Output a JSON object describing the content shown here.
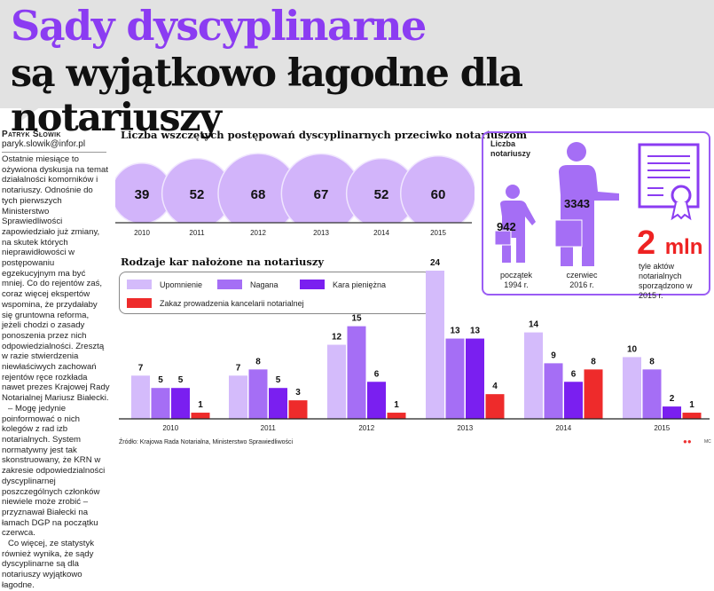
{
  "header": {
    "title_line1": "Sądy dyscyplinarne",
    "title_line2": "są wyjątkowo łagodne dla notariuszy"
  },
  "article": {
    "author": "Patryk Słowik",
    "email": "paryk.slowik@infor.pl",
    "paragraphs": [
      "Ostatnie miesiące to ożywiona dyskusja na temat działalności komorników i notariuszy. Odnośnie do tych pierwszych Ministerstwo Sprawiedliwości zapowiedziało już zmiany, na skutek których nieprawidłowości w postępowaniu egzekucyjnym ma być mniej. Co do rejentów zaś, coraz więcej ekspertów wspomina, że przydałaby się gruntowna reforma, jeżeli chodzi o zasady ponoszenia przez nich odpowiedzialności. Zresztą w razie stwierdzenia niewłaściwych zachowań rejentów ręce rozkłada nawet prezes Krajowej Rady Notarialnej Mariusz Białecki.",
      "– Mogę jedynie poinformować o nich kolegów z rad izb notarialnych. System normatywny jest tak skonstruowany, że KRN w zakresie odpowiedzialności dyscyplinarnej poszczególnych członków niewiele może zrobić – przyznawał Białecki na łamach DGP na początku czerwca.",
      "Co więcej, ze statystyk również wynika, że sądy dyscyplinarne są dla notariuszy wyjątkowo łagodne."
    ]
  },
  "notaries": {
    "title": "Liczba notariuszy",
    "items": [
      {
        "value": "942",
        "label": "początek 1994 r."
      },
      {
        "value": "3343",
        "label": "czerwiec 2016 r."
      }
    ],
    "acts_value": "2",
    "acts_unit": "mln",
    "acts_label": "tyle aktów notarialnych sporządzono w 2015 r."
  },
  "source": "Źródło: Krajowa Rada Notarialna, Ministerstwo Sprawiedliwości",
  "credit": "MC",
  "colors": {
    "purple_title": "#8b3cf2",
    "bubble": "#d2b4fa",
    "upomnienie": "#d4bbfb",
    "nagana": "#a56ef5",
    "kara": "#7a1ff0",
    "zakaz": "#ee2b2b",
    "red_big": "#ee2222"
  },
  "chart_data": [
    {
      "type": "bubble",
      "title": "Liczba wszczętych postępowań dyscyplinarnych przeciwko notariuszom",
      "categories": [
        "2010",
        "2011",
        "2012",
        "2013",
        "2014",
        "2015"
      ],
      "values": [
        39,
        52,
        68,
        67,
        52,
        60
      ]
    },
    {
      "type": "bar",
      "title": "Rodzaje kar nałożone na notariuszy",
      "categories": [
        "2010",
        "2011",
        "2012",
        "2013",
        "2014",
        "2015"
      ],
      "legend": "top-left",
      "grid": false,
      "series": [
        {
          "name": "Upomnienie",
          "values": [
            7,
            7,
            12,
            24,
            14,
            10
          ]
        },
        {
          "name": "Nagana",
          "values": [
            5,
            8,
            15,
            13,
            9,
            8
          ]
        },
        {
          "name": "Kara pieniężna",
          "values": [
            5,
            5,
            6,
            13,
            6,
            2
          ]
        },
        {
          "name": "Zakaz prowadzenia kancelarii notarialnej",
          "values": [
            1,
            3,
            1,
            4,
            8,
            1
          ]
        }
      ],
      "ylim": [
        0,
        24
      ]
    }
  ]
}
